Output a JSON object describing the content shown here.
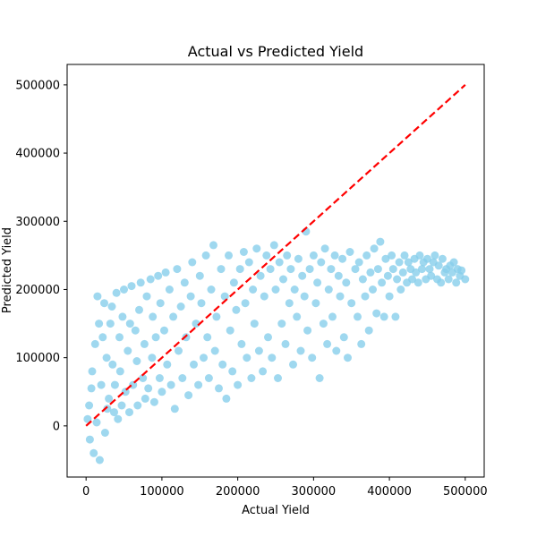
{
  "chart_data": {
    "type": "scatter",
    "title": "Actual vs Predicted Yield",
    "xlabel": "Actual Yield",
    "ylabel": "Predicted Yield",
    "xlim": [
      -25000,
      525000
    ],
    "ylim": [
      -75000,
      530000
    ],
    "x_ticks": [
      0,
      100000,
      200000,
      300000,
      400000,
      500000
    ],
    "y_ticks": [
      0,
      100000,
      200000,
      300000,
      400000,
      500000
    ],
    "grid": false,
    "legend": "none",
    "point_color": "#87ceeb",
    "reference_line": {
      "x": [
        0,
        500000
      ],
      "y": [
        0,
        500000
      ],
      "color": "#ff0000",
      "style": "dashed"
    },
    "series": [
      {
        "points": [
          [
            2000,
            10000
          ],
          [
            4000,
            30000
          ],
          [
            5000,
            -20000
          ],
          [
            7000,
            55000
          ],
          [
            8000,
            80000
          ],
          [
            10000,
            -40000
          ],
          [
            12000,
            120000
          ],
          [
            14000,
            5000
          ],
          [
            15000,
            190000
          ],
          [
            17000,
            150000
          ],
          [
            18000,
            -50000
          ],
          [
            20000,
            60000
          ],
          [
            22000,
            130000
          ],
          [
            24000,
            180000
          ],
          [
            25000,
            -10000
          ],
          [
            27000,
            100000
          ],
          [
            28000,
            25000
          ],
          [
            30000,
            40000
          ],
          [
            32000,
            150000
          ],
          [
            34000,
            175000
          ],
          [
            35000,
            90000
          ],
          [
            37000,
            20000
          ],
          [
            38000,
            60000
          ],
          [
            40000,
            195000
          ],
          [
            42000,
            10000
          ],
          [
            44000,
            130000
          ],
          [
            45000,
            80000
          ],
          [
            47000,
            30000
          ],
          [
            48000,
            160000
          ],
          [
            50000,
            200000
          ],
          [
            52000,
            50000
          ],
          [
            55000,
            110000
          ],
          [
            57000,
            20000
          ],
          [
            58000,
            150000
          ],
          [
            60000,
            205000
          ],
          [
            62000,
            60000
          ],
          [
            65000,
            140000
          ],
          [
            67000,
            95000
          ],
          [
            68000,
            30000
          ],
          [
            70000,
            170000
          ],
          [
            72000,
            210000
          ],
          [
            75000,
            70000
          ],
          [
            77000,
            120000
          ],
          [
            78000,
            40000
          ],
          [
            80000,
            190000
          ],
          [
            82000,
            55000
          ],
          [
            85000,
            215000
          ],
          [
            87000,
            100000
          ],
          [
            88000,
            160000
          ],
          [
            90000,
            35000
          ],
          [
            92000,
            130000
          ],
          [
            95000,
            220000
          ],
          [
            97000,
            70000
          ],
          [
            98000,
            180000
          ],
          [
            100000,
            50000
          ],
          [
            103000,
            140000
          ],
          [
            105000,
            225000
          ],
          [
            107000,
            90000
          ],
          [
            110000,
            200000
          ],
          [
            112000,
            60000
          ],
          [
            115000,
            160000
          ],
          [
            117000,
            25000
          ],
          [
            120000,
            230000
          ],
          [
            122000,
            110000
          ],
          [
            125000,
            175000
          ],
          [
            127000,
            70000
          ],
          [
            130000,
            210000
          ],
          [
            132000,
            130000
          ],
          [
            135000,
            45000
          ],
          [
            138000,
            190000
          ],
          [
            140000,
            240000
          ],
          [
            142000,
            90000
          ],
          [
            145000,
            150000
          ],
          [
            148000,
            60000
          ],
          [
            150000,
            220000
          ],
          [
            152000,
            180000
          ],
          [
            155000,
            100000
          ],
          [
            158000,
            250000
          ],
          [
            160000,
            130000
          ],
          [
            162000,
            70000
          ],
          [
            165000,
            200000
          ],
          [
            168000,
            265000
          ],
          [
            170000,
            110000
          ],
          [
            172000,
            160000
          ],
          [
            175000,
            55000
          ],
          [
            178000,
            230000
          ],
          [
            180000,
            90000
          ],
          [
            183000,
            190000
          ],
          [
            185000,
            40000
          ],
          [
            188000,
            250000
          ],
          [
            190000,
            140000
          ],
          [
            193000,
            80000
          ],
          [
            195000,
            210000
          ],
          [
            198000,
            170000
          ],
          [
            200000,
            60000
          ],
          [
            203000,
            230000
          ],
          [
            205000,
            120000
          ],
          [
            208000,
            255000
          ],
          [
            210000,
            180000
          ],
          [
            212000,
            100000
          ],
          [
            215000,
            240000
          ],
          [
            218000,
            70000
          ],
          [
            220000,
            200000
          ],
          [
            222000,
            150000
          ],
          [
            225000,
            260000
          ],
          [
            228000,
            110000
          ],
          [
            230000,
            220000
          ],
          [
            233000,
            80000
          ],
          [
            235000,
            190000
          ],
          [
            238000,
            250000
          ],
          [
            240000,
            130000
          ],
          [
            243000,
            230000
          ],
          [
            245000,
            100000
          ],
          [
            248000,
            265000
          ],
          [
            250000,
            200000
          ],
          [
            253000,
            70000
          ],
          [
            255000,
            240000
          ],
          [
            258000,
            150000
          ],
          [
            260000,
            215000
          ],
          [
            263000,
            120000
          ],
          [
            265000,
            250000
          ],
          [
            268000,
            180000
          ],
          [
            270000,
            230000
          ],
          [
            273000,
            90000
          ],
          [
            275000,
            200000
          ],
          [
            278000,
            160000
          ],
          [
            280000,
            245000
          ],
          [
            283000,
            110000
          ],
          [
            285000,
            220000
          ],
          [
            288000,
            190000
          ],
          [
            290000,
            285000
          ],
          [
            292000,
            140000
          ],
          [
            295000,
            230000
          ],
          [
            298000,
            100000
          ],
          [
            300000,
            250000
          ],
          [
            303000,
            180000
          ],
          [
            305000,
            210000
          ],
          [
            308000,
            70000
          ],
          [
            310000,
            240000
          ],
          [
            313000,
            150000
          ],
          [
            315000,
            260000
          ],
          [
            318000,
            120000
          ],
          [
            320000,
            200000
          ],
          [
            323000,
            230000
          ],
          [
            325000,
            160000
          ],
          [
            328000,
            250000
          ],
          [
            330000,
            110000
          ],
          [
            333000,
            220000
          ],
          [
            335000,
            190000
          ],
          [
            338000,
            245000
          ],
          [
            340000,
            130000
          ],
          [
            343000,
            210000
          ],
          [
            345000,
            100000
          ],
          [
            348000,
            255000
          ],
          [
            350000,
            180000
          ],
          [
            355000,
            230000
          ],
          [
            358000,
            160000
          ],
          [
            360000,
            240000
          ],
          [
            363000,
            120000
          ],
          [
            365000,
            215000
          ],
          [
            368000,
            190000
          ],
          [
            370000,
            250000
          ],
          [
            373000,
            140000
          ],
          [
            375000,
            225000
          ],
          [
            378000,
            200000
          ],
          [
            380000,
            260000
          ],
          [
            383000,
            165000
          ],
          [
            385000,
            230000
          ],
          [
            388000,
            270000
          ],
          [
            390000,
            210000
          ],
          [
            393000,
            160000
          ],
          [
            395000,
            245000
          ],
          [
            398000,
            220000
          ],
          [
            400000,
            190000
          ],
          [
            403000,
            250000
          ],
          [
            405000,
            230000
          ],
          [
            408000,
            160000
          ],
          [
            410000,
            215000
          ],
          [
            413000,
            240000
          ],
          [
            415000,
            200000
          ],
          [
            418000,
            225000
          ],
          [
            420000,
            250000
          ],
          [
            423000,
            210000
          ],
          [
            425000,
            240000
          ],
          [
            428000,
            230000
          ],
          [
            430000,
            215000
          ],
          [
            433000,
            245000
          ],
          [
            435000,
            225000
          ],
          [
            438000,
            210000
          ],
          [
            440000,
            250000
          ],
          [
            443000,
            230000
          ],
          [
            445000,
            240000
          ],
          [
            448000,
            215000
          ],
          [
            450000,
            245000
          ],
          [
            453000,
            230000
          ],
          [
            455000,
            220000
          ],
          [
            458000,
            240000
          ],
          [
            460000,
            250000
          ],
          [
            463000,
            215000
          ],
          [
            465000,
            235000
          ],
          [
            468000,
            210000
          ],
          [
            470000,
            245000
          ],
          [
            473000,
            225000
          ],
          [
            475000,
            230000
          ],
          [
            478000,
            215000
          ],
          [
            480000,
            235000
          ],
          [
            483000,
            225000
          ],
          [
            485000,
            240000
          ],
          [
            488000,
            210000
          ],
          [
            490000,
            230000
          ],
          [
            493000,
            220000
          ],
          [
            495000,
            228000
          ],
          [
            500000,
            215000
          ]
        ]
      }
    ]
  }
}
